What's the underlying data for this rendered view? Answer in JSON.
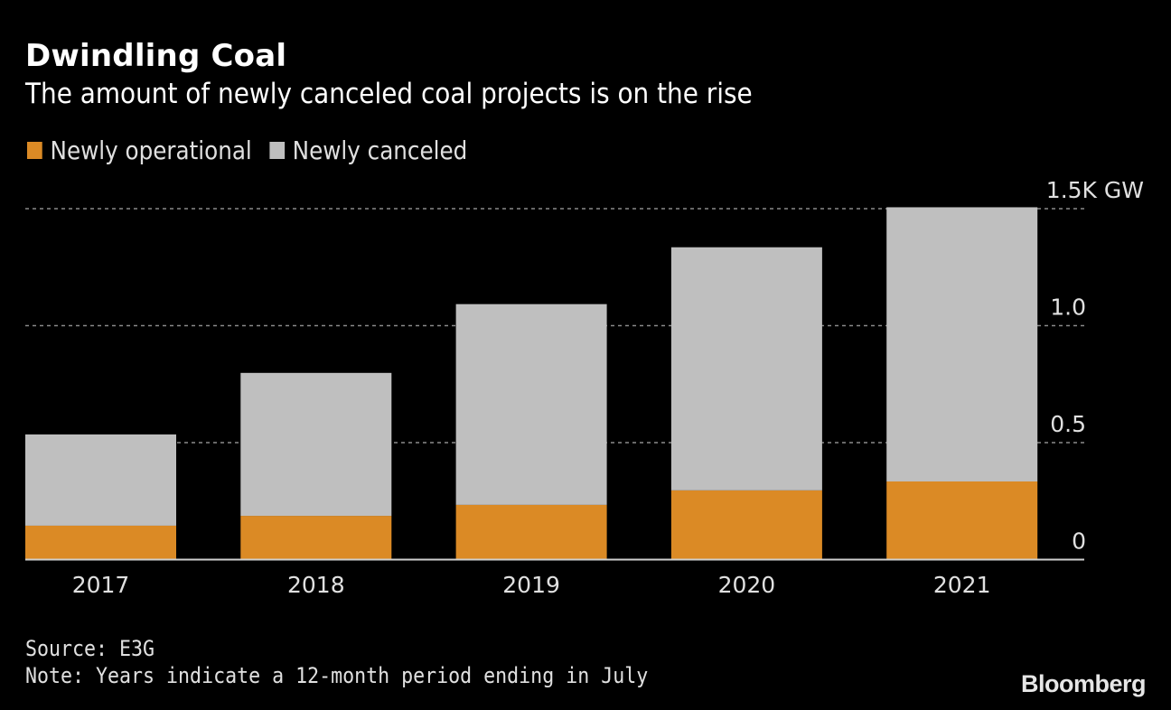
{
  "header": {
    "title": "Dwindling Coal",
    "subtitle": "The amount of newly canceled coal projects is on the rise"
  },
  "legend": [
    {
      "label": "Newly operational",
      "color": "#db8a25"
    },
    {
      "label": "Newly canceled",
      "color": "#bfbfbf"
    }
  ],
  "footer": {
    "source": "Source: E3G",
    "note": "Note: Years indicate a 12-month period ending in July",
    "brand": "Bloomberg"
  },
  "chart_data": {
    "type": "bar",
    "stacked": true,
    "title": "Dwindling Coal",
    "subtitle": "The amount of newly canceled coal projects is on the rise",
    "xlabel": "",
    "ylabel": "GW",
    "categories": [
      "2017",
      "2018",
      "2019",
      "2020",
      "2021"
    ],
    "series": [
      {
        "name": "Newly operational",
        "color": "#db8a25",
        "values": [
          145,
          187,
          234,
          296,
          334
        ]
      },
      {
        "name": "Newly canceled",
        "color": "#bfbfbf",
        "values": [
          390,
          611,
          858,
          1039,
          1172
        ]
      }
    ],
    "ylim": [
      0,
      1500
    ],
    "yticks": [
      0,
      500,
      1000,
      1500
    ],
    "ytick_labels": [
      "0",
      "0.5",
      "1.0",
      "1.5K GW"
    ],
    "y_axis_position": "right",
    "grid": true,
    "legend_position": "top-left"
  }
}
